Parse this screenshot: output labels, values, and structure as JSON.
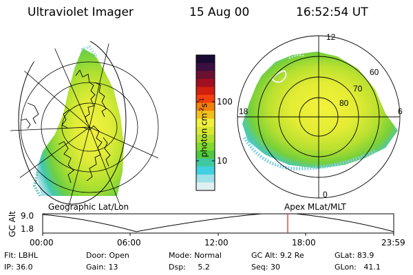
{
  "header": {
    "instrument": "Ultraviolet Imager",
    "date": "15 Aug 00",
    "time": "16:52:54 UT"
  },
  "colorbar": {
    "unit_main": "photon cm",
    "unit_exp1": "-2",
    "unit_mid": "s",
    "unit_exp2": "-1",
    "ticks": [
      "100",
      "10"
    ],
    "colors": [
      "#1a0a30",
      "#3a1040",
      "#6a1030",
      "#a01020",
      "#d02010",
      "#f04010",
      "#f08010",
      "#f0c020",
      "#f0f040",
      "#d8e830",
      "#b0e030",
      "#80d830",
      "#50c840",
      "#40c8a0",
      "#40d0e0",
      "#a0e0e8",
      "#e0f0f0"
    ]
  },
  "left_map": {
    "caption": "Geographic Lat/Lon"
  },
  "right_map": {
    "caption": "Apex MLat/MLT",
    "mlt_labels": [
      "12",
      "6",
      "0",
      "18"
    ],
    "lat_labels": [
      "60",
      "70",
      "80"
    ]
  },
  "altitude_plot": {
    "ylabel": "GC Alt",
    "yticks": [
      "9.0",
      "1.8"
    ],
    "xticks": [
      "00:00",
      "06:00",
      "12:00",
      "18:00",
      "23:59"
    ],
    "marker_color": "#e02020"
  },
  "status": {
    "row1": [
      {
        "label": "Flt:",
        "value": "LBHL"
      },
      {
        "label": "Door:",
        "value": "Open"
      },
      {
        "label": "Mode:",
        "value": "Normal"
      },
      {
        "label": "GC Alt:",
        "value": "9.2 Re"
      },
      {
        "label": "GLat:",
        "value": "83.9"
      }
    ],
    "row2": [
      {
        "label": "IP:",
        "value": "36.0"
      },
      {
        "label": "Gain:",
        "value": "13"
      },
      {
        "label": "Dsp:",
        "value": "5.2"
      },
      {
        "label": "Seq:",
        "value": "30"
      },
      {
        "label": "GLon:",
        "value": "41.1"
      }
    ]
  }
}
